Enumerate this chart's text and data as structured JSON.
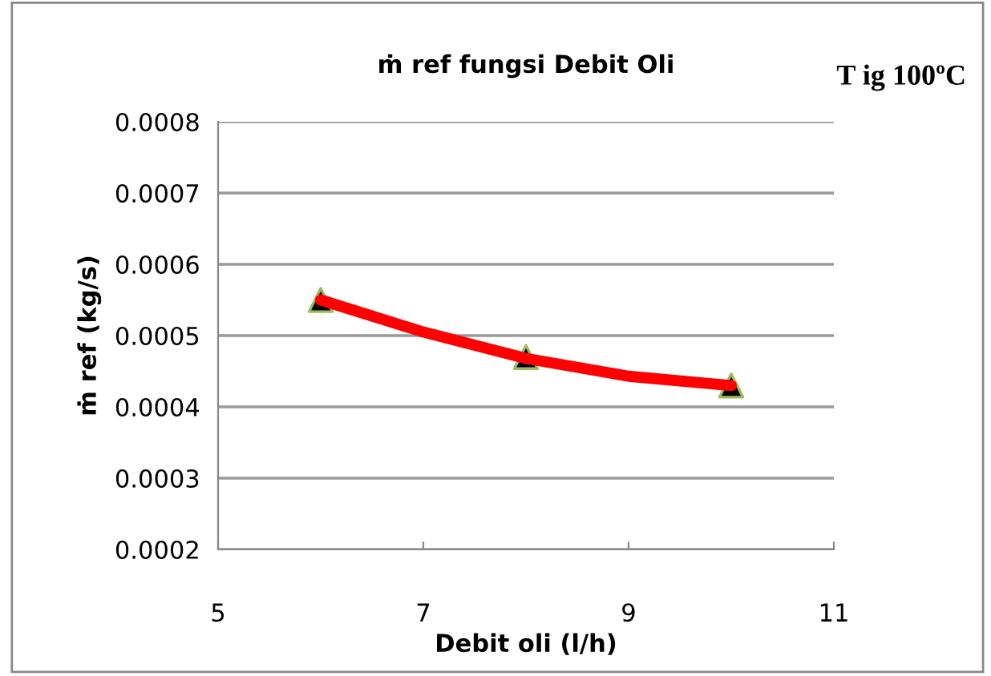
{
  "chart_data": {
    "type": "scatter",
    "title": "ṁ ref fungsi Debit Oli",
    "xlabel": "Debit oli (l/h)",
    "ylabel": "ṁ ref (kg/s)",
    "annotations": [
      "T ig 100ºC"
    ],
    "series": [
      {
        "type": "line",
        "color": "#ff0000",
        "x": [
          6,
          7,
          8,
          9,
          10
        ],
        "values": [
          0.00055,
          0.000505,
          0.000468,
          0.000443,
          0.00043
        ],
        "marker": "none"
      },
      {
        "color": "#000000",
        "x": [
          6,
          8,
          10
        ],
        "values": [
          0.00055,
          0.00047,
          0.00043
        ],
        "marker": "triangle"
      }
    ],
    "xlim": [
      5,
      11
    ],
    "xticks": [
      5,
      7,
      9,
      11
    ],
    "ylim": [
      0.0002,
      0.0008
    ],
    "yticks": [
      {
        "value": 0.0002,
        "label": "0.0002"
      },
      {
        "value": 0.0003,
        "label": "0.0003"
      },
      {
        "value": 0.0004,
        "label": "0.0004"
      },
      {
        "value": 0.0005,
        "label": "0.0005"
      },
      {
        "value": 0.0006,
        "label": "0.0006"
      },
      {
        "value": 0.0007,
        "label": "0.0007"
      },
      {
        "value": 0.0008,
        "label": "0.0008"
      }
    ],
    "grid": "y",
    "legend": false
  }
}
